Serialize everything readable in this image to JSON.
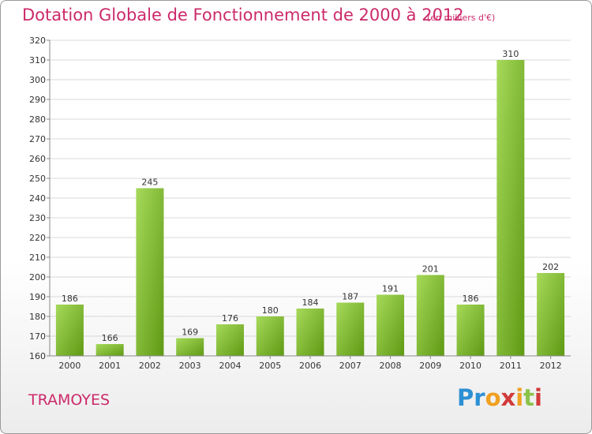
{
  "chart_data": {
    "type": "bar",
    "title": "Dotation Globale de Fonctionnement de 2000 à 2012",
    "subtitle": "(en milliers d'€)",
    "categories": [
      "2000",
      "2001",
      "2002",
      "2003",
      "2004",
      "2005",
      "2006",
      "2007",
      "2008",
      "2009",
      "2010",
      "2011",
      "2012"
    ],
    "values": [
      186,
      166,
      245,
      169,
      176,
      180,
      184,
      187,
      191,
      201,
      186,
      310,
      202
    ],
    "ylim": [
      160,
      320
    ],
    "yticks": [
      160,
      170,
      180,
      190,
      200,
      210,
      220,
      230,
      240,
      250,
      260,
      270,
      280,
      290,
      300,
      310,
      320
    ],
    "grid": true,
    "bar_color": "#7cbf2a"
  },
  "footer": {
    "commune": "TRAMOYES",
    "logo_text": "Proxiti"
  }
}
